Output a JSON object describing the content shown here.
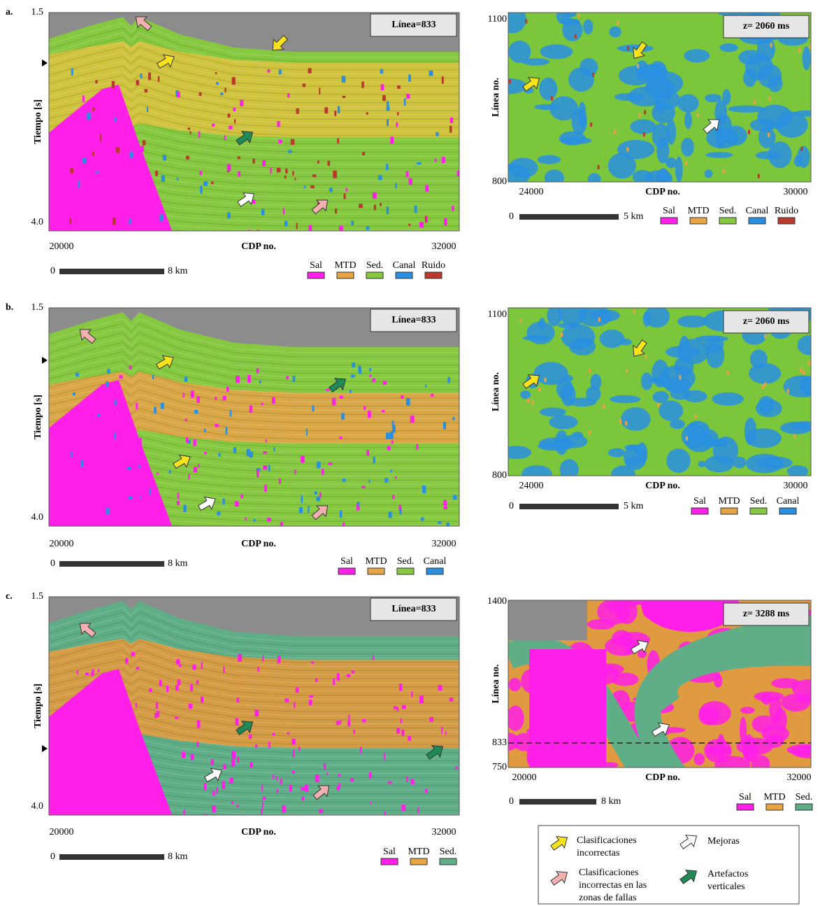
{
  "panels": [
    {
      "label": "a.",
      "section": {
        "y_ticks": [
          "1.5",
          "4.0"
        ],
        "y_label": "Tiempo [s]",
        "x_ticks": [
          "20000",
          "32000"
        ],
        "x_label": "CDP no.",
        "line_box": "Línea=833",
        "scale": [
          "0",
          "8 km"
        ],
        "legend": [
          "Sal",
          "MTD",
          "Sed.",
          "Canal",
          "Ruido"
        ]
      },
      "map": {
        "y_ticks": [
          "1100",
          "800"
        ],
        "y_label": "Línea no.",
        "x_ticks": [
          "24000",
          "30000"
        ],
        "x_label": "CDP no.",
        "z_box": "z= 2060 ms",
        "scale": [
          "0",
          "5 km"
        ],
        "legend": [
          "Sal",
          "MTD",
          "Sed.",
          "Canal",
          "Ruido"
        ]
      }
    },
    {
      "label": "b.",
      "section": {
        "y_ticks": [
          "1.5",
          "4.0"
        ],
        "y_label": "Tiempo [s]",
        "x_ticks": [
          "20000",
          "32000"
        ],
        "x_label": "CDP no.",
        "line_box": "Línea=833",
        "scale": [
          "0",
          "8 km"
        ],
        "legend": [
          "Sal",
          "MTD",
          "Sed.",
          "Canal"
        ]
      },
      "map": {
        "y_ticks": [
          "1100",
          "800"
        ],
        "y_label": "Línea no.",
        "x_ticks": [
          "24000",
          "30000"
        ],
        "x_label": "CDP no.",
        "z_box": "z= 2060 ms",
        "scale": [
          "0",
          "5 km"
        ],
        "legend": [
          "Sal",
          "MTD",
          "Sed.",
          "Canal"
        ]
      }
    },
    {
      "label": "c.",
      "section": {
        "y_ticks": [
          "1.5",
          "4.0"
        ],
        "y_label": "Tiempo [s]",
        "x_ticks": [
          "20000",
          "32000"
        ],
        "x_label": "CDP no.",
        "line_box": "Línea=833",
        "scale": [
          "0",
          "8 km"
        ],
        "legend": [
          "Sal",
          "MTD",
          "Sed."
        ]
      },
      "map": {
        "y_ticks": [
          "1400",
          "833",
          "750"
        ],
        "y_label": "Línea no.",
        "x_ticks": [
          "20000",
          "32000"
        ],
        "x_label": "CDP no.",
        "z_box": "z= 3288 ms",
        "scale": [
          "0",
          "8 km"
        ],
        "legend": [
          "Sal",
          "MTD",
          "Sed."
        ]
      }
    }
  ],
  "key": [
    {
      "lines": [
        "Clasificaciones",
        "incorrectas"
      ]
    },
    {
      "lines": [
        "Mejoras"
      ]
    },
    {
      "lines": [
        "Clasificaciones",
        "incorrectas en las",
        "zonas de fallas"
      ]
    },
    {
      "lines": [
        "Artefactos",
        "verticales"
      ]
    }
  ]
}
